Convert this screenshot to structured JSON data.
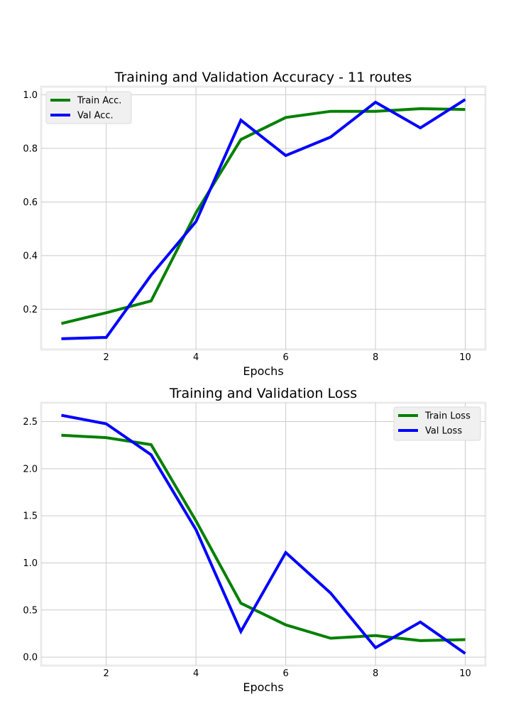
{
  "chart_data": [
    {
      "type": "line",
      "title": "Training and Validation Accuracy - 11 routes",
      "xlabel": "Epochs",
      "ylabel": "",
      "x": [
        1,
        2,
        3,
        4,
        5,
        6,
        7,
        8,
        9,
        10
      ],
      "xlim": [
        0.55,
        10.45
      ],
      "ylim": [
        0.05,
        1.03
      ],
      "xticks": [
        2,
        4,
        6,
        8,
        10
      ],
      "xtick_labels": [
        "2",
        "4",
        "6",
        "8",
        "10"
      ],
      "yticks": [
        0.2,
        0.4,
        0.6,
        0.8,
        1.0
      ],
      "ytick_labels": [
        "0.2",
        "0.4",
        "0.6",
        "0.8",
        "1.0"
      ],
      "grid": true,
      "legend_position": "top-left",
      "series": [
        {
          "name": "Train Acc.",
          "color": "#008000",
          "values": [
            0.147,
            0.187,
            0.231,
            0.56,
            0.833,
            0.915,
            0.938,
            0.938,
            0.948,
            0.945
          ]
        },
        {
          "name": "Val Acc.",
          "color": "#0000ff",
          "values": [
            0.09,
            0.095,
            0.327,
            0.527,
            0.905,
            0.773,
            0.842,
            0.972,
            0.876,
            0.982
          ]
        }
      ]
    },
    {
      "type": "line",
      "title": "Training and Validation Loss",
      "xlabel": "Epochs",
      "ylabel": "",
      "x": [
        1,
        2,
        3,
        4,
        5,
        6,
        7,
        8,
        9,
        10
      ],
      "xlim": [
        0.55,
        10.45
      ],
      "ylim": [
        -0.09,
        2.7
      ],
      "xticks": [
        2,
        4,
        6,
        8,
        10
      ],
      "xtick_labels": [
        "2",
        "4",
        "6",
        "8",
        "10"
      ],
      "yticks": [
        0.0,
        0.5,
        1.0,
        1.5,
        2.0,
        2.5
      ],
      "ytick_labels": [
        "0.0",
        "0.5",
        "1.0",
        "1.5",
        "2.0",
        "2.5"
      ],
      "grid": true,
      "legend_position": "top-right",
      "series": [
        {
          "name": "Train Loss",
          "color": "#008000",
          "values": [
            2.355,
            2.33,
            2.255,
            1.445,
            0.572,
            0.342,
            0.2,
            0.228,
            0.175,
            0.185
          ]
        },
        {
          "name": "Val Loss",
          "color": "#0000ff",
          "values": [
            2.567,
            2.477,
            2.148,
            1.352,
            0.272,
            1.11,
            0.68,
            0.1,
            0.372,
            0.038
          ]
        }
      ]
    }
  ]
}
